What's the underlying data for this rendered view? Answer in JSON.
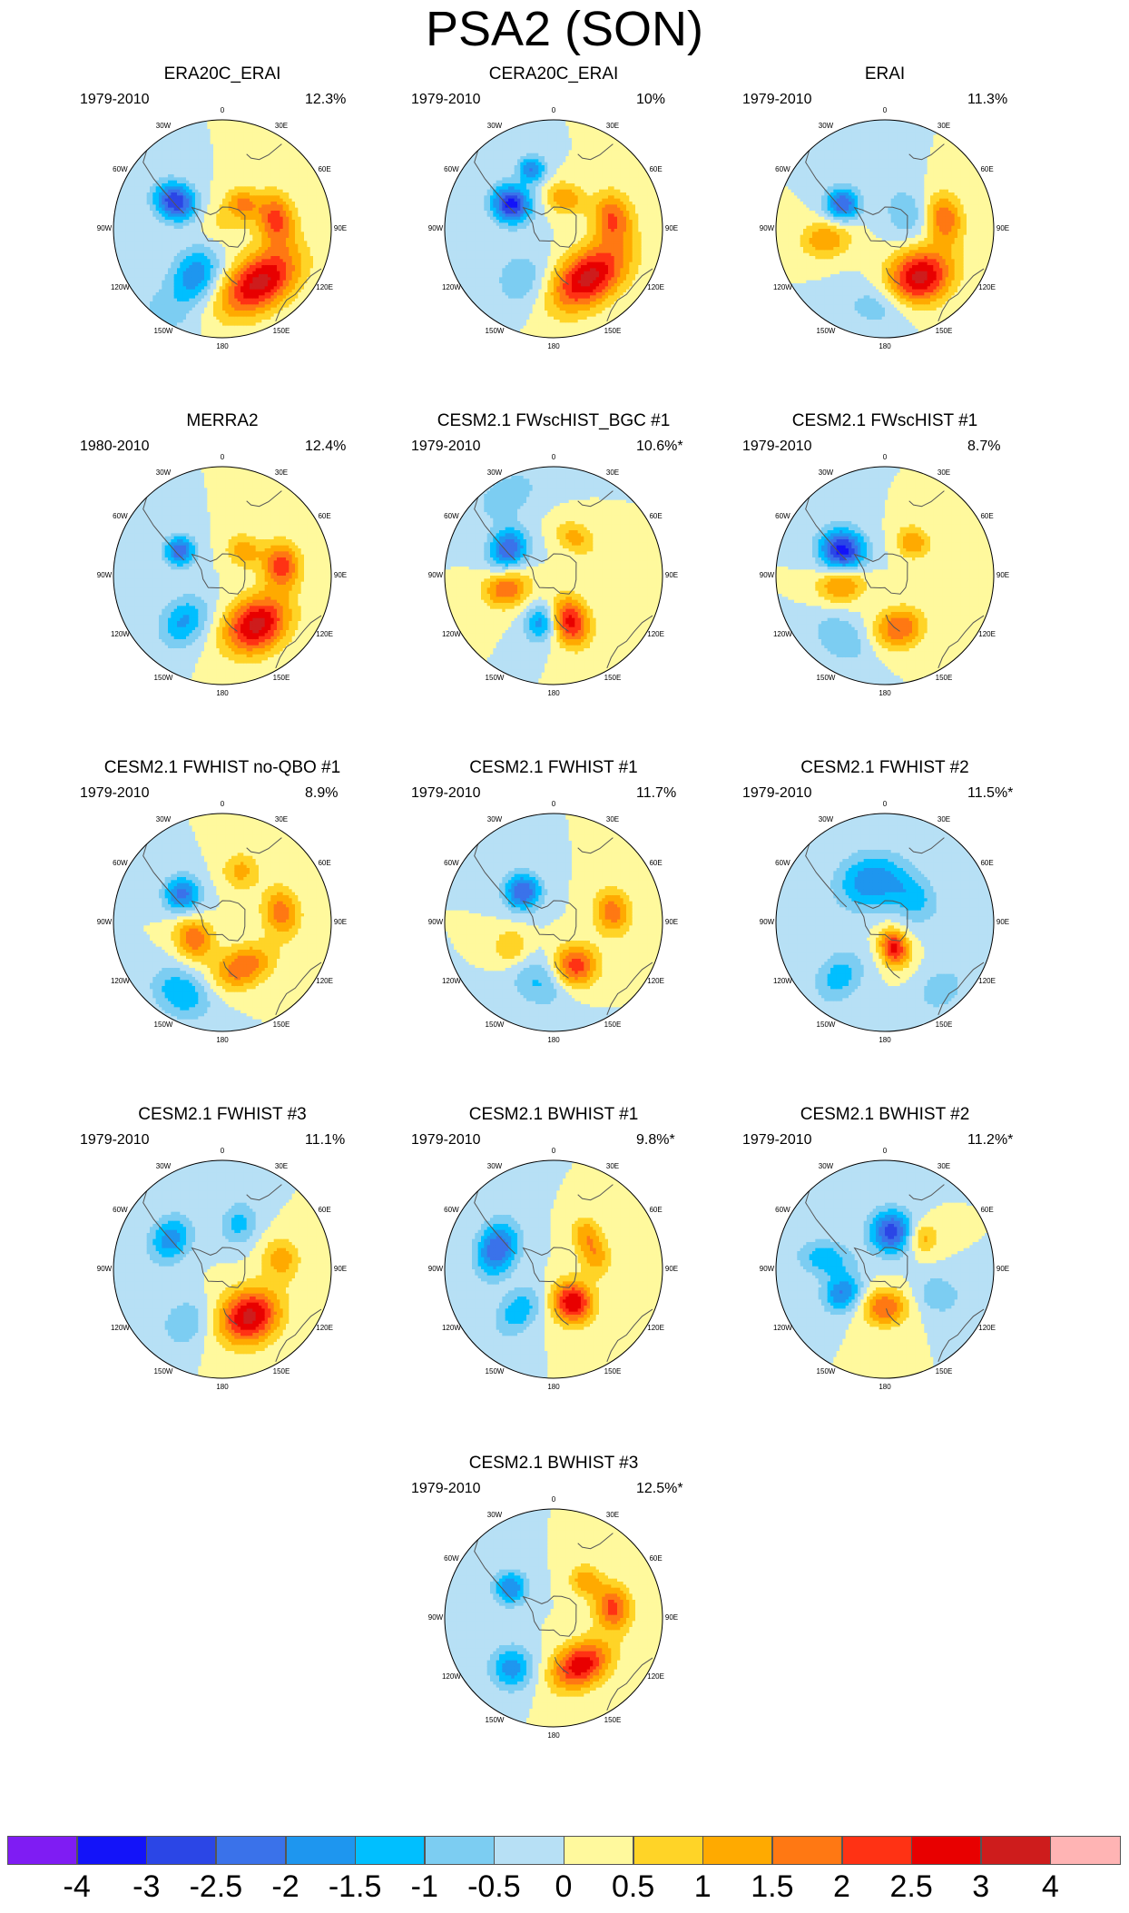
{
  "figure": {
    "title": "PSA2 (SON)"
  },
  "longitude_labels": {
    "top": "0",
    "n30e": "30E",
    "n60e": "60E",
    "e90": "90E",
    "s120e": "120E",
    "s150e": "150E",
    "bottom": "180",
    "s150w": "150W",
    "s120w": "120W",
    "w90": "90W",
    "n60w": "60W",
    "n30w": "30W"
  },
  "chart_data": [
    {
      "type": "heatmap",
      "title": "ERA20C_ERAI",
      "period": "1979-2010",
      "variance_explained": "12.3%",
      "pattern": [
        {
          "lon": 80,
          "colat": 0.5,
          "amp": 2.2,
          "rx": 0.17,
          "ry": 0.12
        },
        {
          "lon": 40,
          "colat": 0.3,
          "amp": 1.5,
          "rx": 0.11,
          "ry": 0.1
        },
        {
          "lon": 145,
          "colat": 0.6,
          "amp": 3.2,
          "rx": 0.28,
          "ry": 0.17
        },
        {
          "lon": 300,
          "colat": 0.5,
          "amp": -3.0,
          "rx": 0.12,
          "ry": 0.14
        },
        {
          "lon": 210,
          "colat": 0.5,
          "amp": -1.9,
          "rx": 0.15,
          "ry": 0.2
        },
        {
          "lon": 215,
          "colat": 0.95,
          "amp": -0.6,
          "rx": 0.2,
          "ry": 0.15
        },
        {
          "lon": 0,
          "colat": 0.05,
          "amp": 0.6,
          "rx": 0.15,
          "ry": 0.15
        }
      ]
    },
    {
      "type": "heatmap",
      "title": "CERA20C_ERAI",
      "period": "1979-2010",
      "variance_explained": "10%",
      "pattern": [
        {
          "lon": 80,
          "colat": 0.55,
          "amp": 2.0,
          "rx": 0.17,
          "ry": 0.13
        },
        {
          "lon": 145,
          "colat": 0.55,
          "amp": 3.2,
          "rx": 0.28,
          "ry": 0.17
        },
        {
          "lon": 300,
          "colat": 0.45,
          "amp": -3.2,
          "rx": 0.12,
          "ry": 0.13
        },
        {
          "lon": 340,
          "colat": 0.58,
          "amp": -2.0,
          "rx": 0.09,
          "ry": 0.09
        },
        {
          "lon": 20,
          "colat": 0.3,
          "amp": 1.5,
          "rx": 0.12,
          "ry": 0.1
        },
        {
          "lon": 210,
          "colat": 0.55,
          "amp": -0.9,
          "rx": 0.2,
          "ry": 0.2
        }
      ]
    },
    {
      "type": "heatmap",
      "title": "ERAI",
      "period": "1979-2010",
      "variance_explained": "11.3%",
      "pattern": [
        {
          "lon": 80,
          "colat": 0.55,
          "amp": 2.0,
          "rx": 0.16,
          "ry": 0.12
        },
        {
          "lon": 145,
          "colat": 0.55,
          "amp": 3.3,
          "rx": 0.22,
          "ry": 0.18
        },
        {
          "lon": 300,
          "colat": 0.45,
          "amp": -2.5,
          "rx": 0.11,
          "ry": 0.11
        },
        {
          "lon": 260,
          "colat": 0.55,
          "amp": 1.5,
          "rx": 0.12,
          "ry": 0.16
        },
        {
          "lon": 180,
          "colat": 0.7,
          "amp": -1.0,
          "rx": 0.25,
          "ry": 0.15
        },
        {
          "lon": 60,
          "colat": 0.25,
          "amp": -0.9,
          "rx": 0.2,
          "ry": 0.15
        }
      ]
    },
    {
      "type": "heatmap",
      "title": "MERRA2",
      "period": "1980-2010",
      "variance_explained": "12.4%",
      "pattern": [
        {
          "lon": 80,
          "colat": 0.55,
          "amp": 2.3,
          "rx": 0.15,
          "ry": 0.12
        },
        {
          "lon": 145,
          "colat": 0.55,
          "amp": 3.2,
          "rx": 0.22,
          "ry": 0.17
        },
        {
          "lon": 300,
          "colat": 0.45,
          "amp": -2.4,
          "rx": 0.1,
          "ry": 0.1
        },
        {
          "lon": 220,
          "colat": 0.55,
          "amp": -1.6,
          "rx": 0.14,
          "ry": 0.18
        },
        {
          "lon": 40,
          "colat": 0.3,
          "amp": 1.4,
          "rx": 0.11,
          "ry": 0.1
        }
      ]
    },
    {
      "type": "heatmap",
      "title": "CESM2.1 FWscHIST_BGC #1",
      "period": "1979-2010",
      "variance_explained": "10.6%*",
      "pattern": [
        {
          "lon": 300,
          "colat": 0.48,
          "amp": -2.5,
          "rx": 0.14,
          "ry": 0.12
        },
        {
          "lon": 160,
          "colat": 0.45,
          "amp": 2.7,
          "rx": 0.12,
          "ry": 0.16
        },
        {
          "lon": 255,
          "colat": 0.45,
          "amp": 2.0,
          "rx": 0.12,
          "ry": 0.15
        },
        {
          "lon": 195,
          "colat": 0.45,
          "amp": -1.8,
          "rx": 0.1,
          "ry": 0.12
        },
        {
          "lon": 30,
          "colat": 0.4,
          "amp": 1.2,
          "rx": 0.14,
          "ry": 0.1
        },
        {
          "lon": 330,
          "colat": 0.85,
          "amp": -0.8,
          "rx": 0.25,
          "ry": 0.15
        }
      ]
    },
    {
      "type": "heatmap",
      "title": "CESM2.1 FWscHIST #1",
      "period": "1979-2010",
      "variance_explained": "8.7%",
      "pattern": [
        {
          "lon": 300,
          "colat": 0.45,
          "amp": -3.3,
          "rx": 0.14,
          "ry": 0.15
        },
        {
          "lon": 165,
          "colat": 0.5,
          "amp": 2.0,
          "rx": 0.16,
          "ry": 0.13
        },
        {
          "lon": 260,
          "colat": 0.4,
          "amp": 1.8,
          "rx": 0.12,
          "ry": 0.16
        },
        {
          "lon": 40,
          "colat": 0.4,
          "amp": 1.5,
          "rx": 0.11,
          "ry": 0.1
        },
        {
          "lon": 215,
          "colat": 0.7,
          "amp": -1.0,
          "rx": 0.2,
          "ry": 0.14
        }
      ]
    },
    {
      "type": "heatmap",
      "title": "CESM2.1 FWHIST no-QBO #1",
      "period": "1979-2010",
      "variance_explained": "8.9%",
      "pattern": [
        {
          "lon": 80,
          "colat": 0.55,
          "amp": 1.8,
          "rx": 0.16,
          "ry": 0.12
        },
        {
          "lon": 155,
          "colat": 0.45,
          "amp": 2.0,
          "rx": 0.2,
          "ry": 0.13
        },
        {
          "lon": 305,
          "colat": 0.45,
          "amp": -2.2,
          "rx": 0.12,
          "ry": 0.12
        },
        {
          "lon": 240,
          "colat": 0.3,
          "amp": 1.9,
          "rx": 0.14,
          "ry": 0.12
        },
        {
          "lon": 210,
          "colat": 0.75,
          "amp": -1.5,
          "rx": 0.2,
          "ry": 0.15
        },
        {
          "lon": 20,
          "colat": 0.5,
          "amp": 1.2,
          "rx": 0.12,
          "ry": 0.12
        }
      ]
    },
    {
      "type": "heatmap",
      "title": "CESM2.1 FWHIST #1",
      "period": "1979-2010",
      "variance_explained": "11.7%",
      "pattern": [
        {
          "lon": 80,
          "colat": 0.55,
          "amp": 1.8,
          "rx": 0.15,
          "ry": 0.12
        },
        {
          "lon": 155,
          "colat": 0.45,
          "amp": 2.5,
          "rx": 0.15,
          "ry": 0.14
        },
        {
          "lon": 315,
          "colat": 0.4,
          "amp": -2.5,
          "rx": 0.12,
          "ry": 0.12
        },
        {
          "lon": 190,
          "colat": 0.55,
          "amp": -1.2,
          "rx": 0.2,
          "ry": 0.16
        },
        {
          "lon": 240,
          "colat": 0.45,
          "amp": 1.0,
          "rx": 0.12,
          "ry": 0.12
        }
      ]
    },
    {
      "type": "heatmap",
      "title": "CESM2.1 FWHIST #2",
      "period": "1979-2010",
      "variance_explained": "11.5%*",
      "pattern": [
        {
          "lon": 160,
          "colat": 0.25,
          "amp": 2.7,
          "rx": 0.09,
          "ry": 0.12
        },
        {
          "lon": 340,
          "colat": 0.4,
          "amp": -1.9,
          "rx": 0.22,
          "ry": 0.18
        },
        {
          "lon": 50,
          "colat": 0.35,
          "amp": -1.2,
          "rx": 0.18,
          "ry": 0.14
        },
        {
          "lon": 220,
          "colat": 0.65,
          "amp": -1.3,
          "rx": 0.14,
          "ry": 0.18
        },
        {
          "lon": 140,
          "colat": 0.8,
          "amp": -0.8,
          "rx": 0.18,
          "ry": 0.14
        }
      ]
    },
    {
      "type": "heatmap",
      "title": "CESM2.1 FWHIST #3",
      "period": "1979-2010",
      "variance_explained": "11.1%",
      "pattern": [
        {
          "lon": 150,
          "colat": 0.5,
          "amp": 3.2,
          "rx": 0.2,
          "ry": 0.17
        },
        {
          "lon": 300,
          "colat": 0.55,
          "amp": -1.8,
          "rx": 0.16,
          "ry": 0.13
        },
        {
          "lon": 80,
          "colat": 0.55,
          "amp": 1.3,
          "rx": 0.14,
          "ry": 0.12
        },
        {
          "lon": 20,
          "colat": 0.45,
          "amp": -1.2,
          "rx": 0.12,
          "ry": 0.14
        },
        {
          "lon": 215,
          "colat": 0.6,
          "amp": -1.0,
          "rx": 0.14,
          "ry": 0.16
        }
      ]
    },
    {
      "type": "heatmap",
      "title": "CESM2.1 BWHIST #1",
      "period": "1979-2010",
      "variance_explained": "9.8%*",
      "pattern": [
        {
          "lon": 150,
          "colat": 0.35,
          "amp": 3.0,
          "rx": 0.13,
          "ry": 0.14
        },
        {
          "lon": 290,
          "colat": 0.55,
          "amp": -2.5,
          "rx": 0.18,
          "ry": 0.13
        },
        {
          "lon": 70,
          "colat": 0.4,
          "amp": 1.4,
          "rx": 0.14,
          "ry": 0.1
        },
        {
          "lon": 220,
          "colat": 0.5,
          "amp": -1.4,
          "rx": 0.12,
          "ry": 0.18
        },
        {
          "lon": 40,
          "colat": 0.45,
          "amp": 1.0,
          "rx": 0.1,
          "ry": 0.1
        }
      ]
    },
    {
      "type": "heatmap",
      "title": "CESM2.1 BWHIST #2",
      "period": "1979-2010",
      "variance_explained": "11.2%*",
      "pattern": [
        {
          "lon": 10,
          "colat": 0.35,
          "amp": -2.8,
          "rx": 0.14,
          "ry": 0.14
        },
        {
          "lon": 180,
          "colat": 0.35,
          "amp": 2.0,
          "rx": 0.14,
          "ry": 0.12
        },
        {
          "lon": 240,
          "colat": 0.45,
          "amp": -2.0,
          "rx": 0.11,
          "ry": 0.13
        },
        {
          "lon": 280,
          "colat": 0.55,
          "amp": -1.4,
          "rx": 0.12,
          "ry": 0.18
        },
        {
          "lon": 50,
          "colat": 0.45,
          "amp": 1.3,
          "rx": 0.1,
          "ry": 0.1
        },
        {
          "lon": 115,
          "colat": 0.55,
          "amp": -1.0,
          "rx": 0.12,
          "ry": 0.14
        }
      ]
    },
    {
      "type": "heatmap",
      "title": "CESM2.1 BWHIST #3",
      "period": "1979-2010",
      "variance_explained": "12.5%*",
      "pattern": [
        {
          "lon": 80,
          "colat": 0.55,
          "amp": 2.2,
          "rx": 0.15,
          "ry": 0.12
        },
        {
          "lon": 150,
          "colat": 0.5,
          "amp": 2.9,
          "rx": 0.2,
          "ry": 0.14
        },
        {
          "lon": 305,
          "colat": 0.48,
          "amp": -2.0,
          "rx": 0.11,
          "ry": 0.11
        },
        {
          "lon": 220,
          "colat": 0.6,
          "amp": -1.8,
          "rx": 0.14,
          "ry": 0.14
        },
        {
          "lon": 40,
          "colat": 0.45,
          "amp": 1.4,
          "rx": 0.1,
          "ry": 0.1
        }
      ]
    }
  ],
  "colorbar": {
    "levels": [
      "-4",
      "-3",
      "-2.5",
      "-2",
      "-1.5",
      "-1",
      "-0.5",
      "0",
      "0.5",
      "1",
      "1.5",
      "2",
      "2.5",
      "3",
      "4"
    ],
    "level_values": [
      -4,
      -3,
      -2.5,
      -2,
      -1.5,
      -1,
      -0.5,
      0,
      0.5,
      1,
      1.5,
      2,
      2.5,
      3,
      4
    ],
    "colors": [
      "#7f1cf3",
      "#1313f9",
      "#2b46e6",
      "#3a72ea",
      "#1e96ef",
      "#00bfff",
      "#7ccdf2",
      "#b7e0f5",
      "#fff99d",
      "#ffd427",
      "#ffaa00",
      "#ff7813",
      "#ff3214",
      "#e80000",
      "#ce1c1c",
      "#ffb4b4"
    ]
  }
}
